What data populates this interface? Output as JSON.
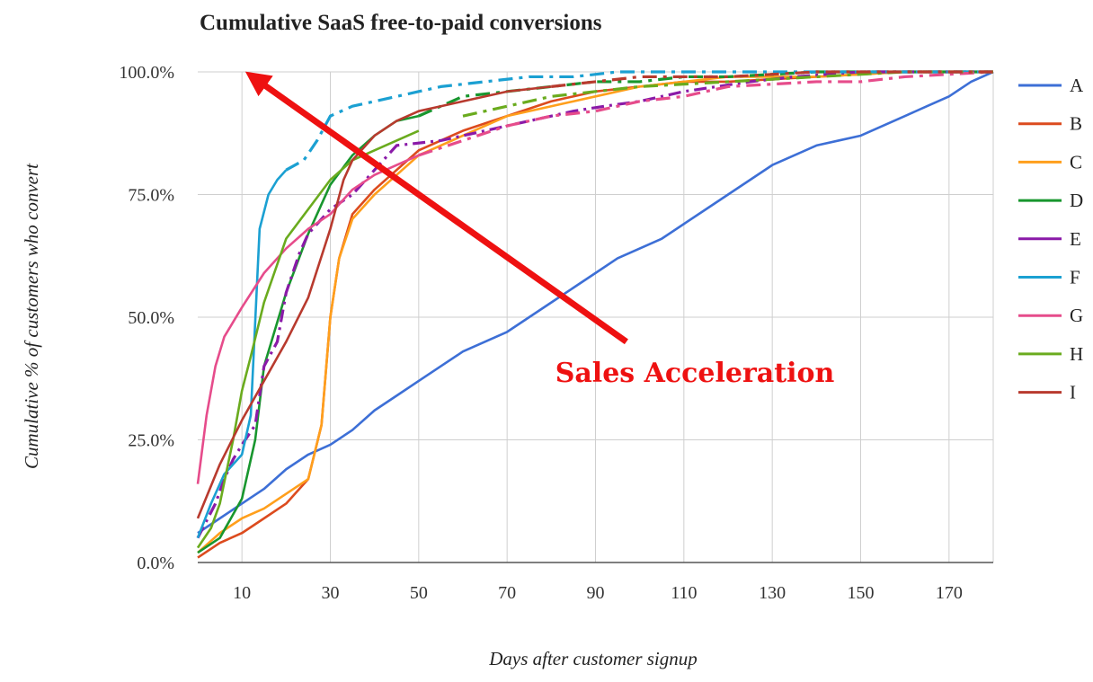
{
  "chart_data": {
    "type": "line",
    "title": "Cumulative SaaS free-to-paid conversions",
    "xlabel": "Days after customer signup",
    "ylabel": "Cumulative % of customers who convert",
    "xlim": [
      0,
      180
    ],
    "ylim": [
      0,
      100
    ],
    "x_ticks": [
      10,
      30,
      50,
      70,
      90,
      110,
      130,
      150,
      170
    ],
    "x_tick_labels": [
      "10",
      "30",
      "50",
      "70",
      "90",
      "110",
      "130",
      "150",
      "170"
    ],
    "y_ticks": [
      0,
      25,
      50,
      75,
      100
    ],
    "y_tick_labels": [
      "0.0%",
      "25.0%",
      "50.0%",
      "75.0%",
      "100.0%"
    ],
    "grid": true,
    "legend_position": "right",
    "series": [
      {
        "name": "A",
        "color": "#3d6fd6",
        "dash": "solid",
        "x": [
          0,
          5,
          10,
          15,
          20,
          25,
          30,
          35,
          40,
          45,
          50,
          55,
          60,
          65,
          70,
          75,
          80,
          85,
          90,
          95,
          100,
          105,
          110,
          115,
          120,
          125,
          130,
          135,
          140,
          145,
          150,
          155,
          160,
          165,
          170,
          175,
          180
        ],
        "y": [
          6,
          9,
          12,
          15,
          19,
          22,
          24,
          27,
          31,
          34,
          37,
          40,
          43,
          45,
          47,
          50,
          53,
          56,
          59,
          62,
          64,
          66,
          69,
          72,
          75,
          78,
          81,
          83,
          85,
          86,
          87,
          89,
          91,
          93,
          95,
          98,
          100
        ]
      },
      {
        "name": "B",
        "color": "#dc4b1e",
        "dash": "solid",
        "x": [
          0,
          5,
          10,
          15,
          20,
          25,
          28,
          30,
          32,
          35,
          40,
          45,
          50,
          60,
          70,
          80,
          90,
          100,
          110,
          120,
          140,
          160,
          180
        ],
        "y": [
          1,
          4,
          6,
          9,
          12,
          17,
          28,
          50,
          62,
          71,
          76,
          80,
          84,
          88,
          91,
          94,
          96,
          97,
          98,
          98,
          99,
          100,
          100
        ]
      },
      {
        "name": "C",
        "color": "#ff9f1c",
        "dash": "solid",
        "x": [
          0,
          5,
          10,
          15,
          20,
          25,
          28,
          30,
          32,
          35,
          40,
          45,
          50,
          60,
          70,
          80,
          90,
          100,
          110,
          120,
          140,
          160,
          180
        ],
        "y": [
          2,
          6,
          9,
          11,
          14,
          17,
          28,
          50,
          62,
          70,
          75,
          79,
          83,
          87,
          91,
          93,
          95,
          97,
          98,
          99,
          99,
          100,
          100
        ]
      },
      {
        "name": "D",
        "color": "#18962e",
        "dash": "solid",
        "dash_from": 50,
        "x": [
          0,
          5,
          10,
          13,
          15,
          20,
          25,
          30,
          35,
          40,
          45,
          50,
          55,
          60,
          70,
          80,
          90,
          100,
          110,
          120,
          140,
          160,
          180
        ],
        "y": [
          2,
          5,
          13,
          25,
          40,
          55,
          67,
          77,
          83,
          87,
          90,
          91,
          93,
          95,
          96,
          97,
          98,
          98,
          99,
          99,
          100,
          100,
          100
        ]
      },
      {
        "name": "E",
        "color": "#8a1aa8",
        "dash": "dotdash",
        "x": [
          0,
          4,
          6,
          8,
          10,
          13,
          15,
          18,
          20,
          23,
          25,
          28,
          30,
          35,
          40,
          45,
          55,
          65,
          80,
          85,
          92,
          100,
          110,
          125,
          135,
          150,
          180
        ],
        "y": [
          5,
          12,
          17,
          21,
          24,
          28,
          40,
          45,
          55,
          63,
          67,
          70,
          72,
          75,
          80,
          85,
          86,
          88,
          91,
          92,
          93,
          94,
          96,
          98,
          99,
          100,
          100
        ]
      },
      {
        "name": "F",
        "color": "#1ba0d2",
        "dash": "solid",
        "dash_from": 20,
        "x": [
          0,
          3,
          6,
          8,
          10,
          12,
          14,
          16,
          18,
          20,
          24,
          27,
          30,
          35,
          40,
          45,
          50,
          55,
          65,
          75,
          85,
          95,
          105,
          120,
          140,
          160,
          180
        ],
        "y": [
          5,
          12,
          18,
          20,
          22,
          30,
          68,
          75,
          78,
          80,
          82,
          86,
          91,
          93,
          94,
          95,
          96,
          97,
          98,
          99,
          99,
          100,
          100,
          100,
          100,
          100,
          100
        ]
      },
      {
        "name": "G",
        "color": "#e64c8b",
        "dash": "solid",
        "dash_from": 50,
        "x": [
          0,
          2,
          4,
          6,
          8,
          10,
          15,
          20,
          25,
          30,
          35,
          40,
          45,
          50,
          60,
          70,
          80,
          90,
          100,
          110,
          120,
          140,
          150,
          160,
          180
        ],
        "y": [
          16,
          30,
          40,
          46,
          49,
          52,
          59,
          64,
          68,
          71,
          76,
          79,
          81,
          83,
          86,
          89,
          91,
          92,
          94,
          95,
          97,
          98,
          98,
          99,
          100
        ]
      },
      {
        "name": "H",
        "color": "#6aab1e",
        "dash": "solid",
        "dash_from": 55,
        "x": [
          0,
          3,
          5,
          8,
          10,
          12,
          15,
          20,
          25,
          30,
          35,
          40,
          50,
          60,
          70,
          80,
          90,
          100,
          120,
          140,
          160,
          180
        ],
        "y": [
          3,
          7,
          12,
          25,
          35,
          42,
          53,
          66,
          72,
          78,
          82,
          84,
          88,
          91,
          93,
          95,
          96,
          97,
          98,
          99,
          100,
          100
        ]
      },
      {
        "name": "I",
        "color": "#b83a2e",
        "dash": "solid",
        "dash_from": 80,
        "x": [
          0,
          5,
          10,
          15,
          20,
          25,
          30,
          33,
          35,
          40,
          45,
          50,
          55,
          60,
          70,
          80,
          90,
          100,
          120,
          140,
          160,
          180
        ],
        "y": [
          9,
          20,
          29,
          37,
          45,
          54,
          68,
          78,
          82,
          87,
          90,
          92,
          93,
          94,
          96,
          97,
          98,
          99,
          99,
          100,
          100,
          100
        ]
      }
    ],
    "annotation": {
      "text": "Sales Acceleration",
      "color": "#ee1111",
      "arrow_from": [
        97,
        45
      ],
      "arrow_to": [
        14,
        98
      ]
    }
  }
}
